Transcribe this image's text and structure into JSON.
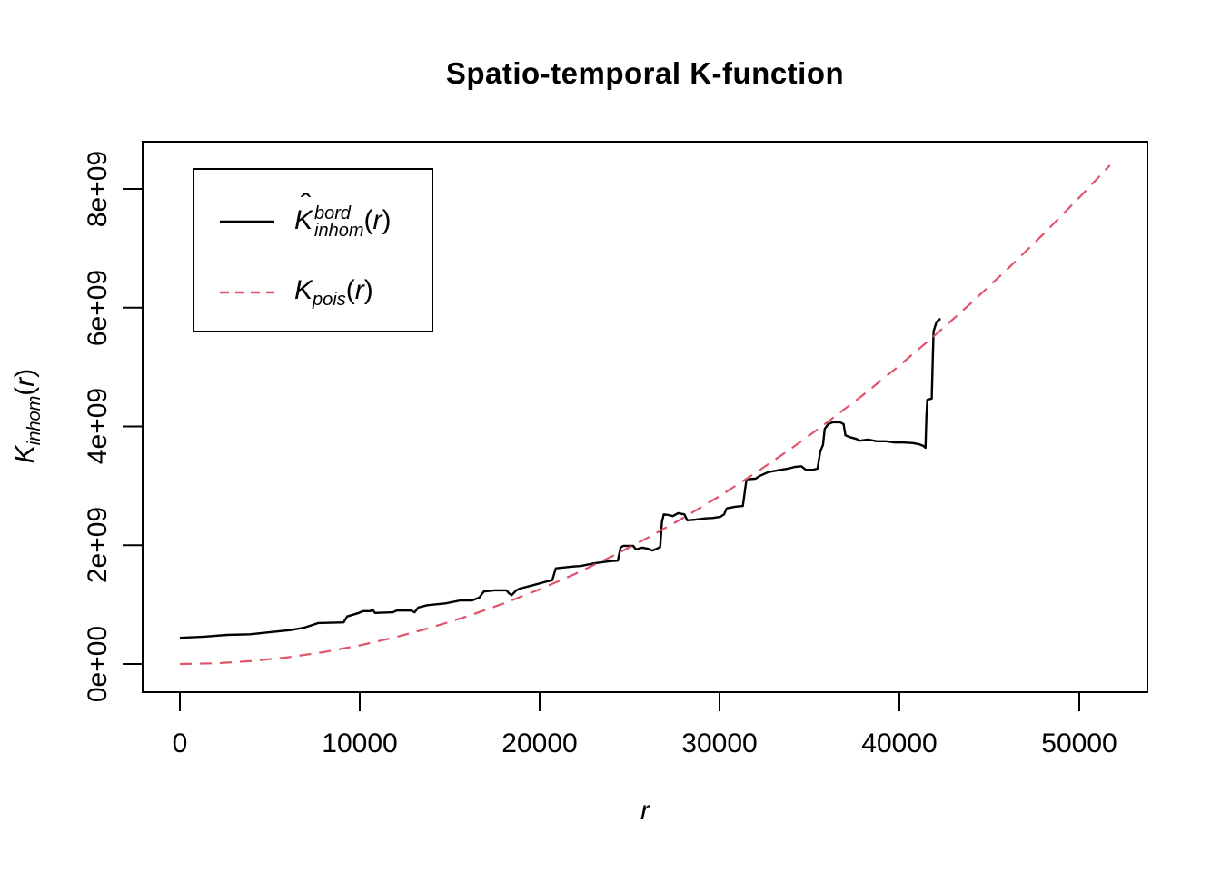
{
  "title": "Spatio-temporal K-function",
  "x_axis": {
    "label": "r",
    "tick_labels": [
      "0",
      "10000",
      "20000",
      "30000",
      "40000",
      "50000"
    ]
  },
  "y_axis": {
    "tick_labels": [
      "0e+00",
      "2e+09",
      "4e+09",
      "6e+09",
      "8e+09"
    ],
    "label": {
      "main": "K",
      "sub": "inhom",
      "open": "(",
      "var": "r",
      "close": ")"
    }
  },
  "legend": {
    "items": [
      {
        "line": "solid",
        "label": {
          "hat": "ˆ",
          "main": "K",
          "sup": "bord",
          "sub": "inhom",
          "open": "(",
          "var": "r",
          "close": ")"
        }
      },
      {
        "line": "dashed",
        "label": {
          "main": "K",
          "sub": "pois",
          "open": "(",
          "var": "r",
          "close": ")"
        }
      }
    ]
  },
  "colors": {
    "black": "#000000",
    "kpois": "#DF536B",
    "background": "#FFFFFF"
  },
  "chart_data": {
    "type": "line",
    "title": "Spatio-temporal K-function",
    "xlabel": "r",
    "ylabel": "K_inhom(r)",
    "xlim": [
      -2070,
      53790
    ],
    "ylim_e9": [
      -0.47,
      8.8
    ],
    "x_ticks": [
      0,
      10000,
      20000,
      30000,
      40000,
      50000
    ],
    "y_ticks_e9": [
      0,
      2,
      4,
      6,
      8
    ],
    "grid": false,
    "legend_position": "top-left",
    "series": [
      {
        "id": "kinhom-curve",
        "name": "K̂_inhom^bord(r)",
        "style": "solid",
        "color": "#000000",
        "units": "K in 1e9",
        "r": [
          0,
          1350,
          2600,
          3900,
          5150,
          6150,
          6900,
          7700,
          9100,
          9300,
          9950,
          10200,
          10600,
          10700,
          10850,
          11850,
          12050,
          12850,
          13050,
          13250,
          13750,
          14750,
          15600,
          16250,
          16650,
          16900,
          17500,
          18150,
          18300,
          18450,
          18700,
          18900,
          19550,
          20400,
          20700,
          20900,
          21800,
          22300,
          23100,
          23850,
          24350,
          24500,
          24650,
          25200,
          25350,
          25700,
          26050,
          26250,
          26500,
          26700,
          26800,
          26900,
          27150,
          27400,
          27700,
          28050,
          28200,
          28650,
          29150,
          29650,
          30050,
          30250,
          30400,
          30900,
          31300,
          31400,
          31500,
          32000,
          32250,
          32700,
          33200,
          33800,
          34200,
          34550,
          34800,
          35200,
          35450,
          35600,
          35750,
          35850,
          36050,
          36300,
          36700,
          36900,
          37000,
          37250,
          37600,
          37800,
          38250,
          38750,
          39250,
          39750,
          40250,
          40750,
          41100,
          41350,
          41450,
          41500,
          41550,
          41800,
          41850,
          41900,
          42050,
          42200,
          42300
        ],
        "K_e9": [
          0.44,
          0.46,
          0.49,
          0.5,
          0.54,
          0.57,
          0.61,
          0.69,
          0.7,
          0.8,
          0.86,
          0.89,
          0.89,
          0.92,
          0.86,
          0.87,
          0.9,
          0.9,
          0.87,
          0.95,
          0.99,
          1.02,
          1.07,
          1.07,
          1.12,
          1.22,
          1.24,
          1.24,
          1.19,
          1.16,
          1.24,
          1.27,
          1.32,
          1.39,
          1.41,
          1.61,
          1.64,
          1.65,
          1.7,
          1.73,
          1.74,
          1.96,
          1.99,
          1.99,
          1.93,
          1.96,
          1.94,
          1.91,
          1.94,
          1.97,
          2.39,
          2.52,
          2.51,
          2.49,
          2.54,
          2.52,
          2.42,
          2.43,
          2.45,
          2.46,
          2.48,
          2.52,
          2.62,
          2.65,
          2.66,
          2.89,
          3.11,
          3.12,
          3.17,
          3.23,
          3.26,
          3.29,
          3.32,
          3.33,
          3.27,
          3.27,
          3.29,
          3.58,
          3.69,
          3.96,
          4.04,
          4.07,
          4.07,
          4.04,
          3.85,
          3.82,
          3.79,
          3.76,
          3.78,
          3.75,
          3.75,
          3.73,
          3.73,
          3.72,
          3.7,
          3.67,
          3.64,
          4.15,
          4.45,
          4.47,
          5.06,
          5.6,
          5.75,
          5.8,
          5.81
        ]
      },
      {
        "id": "kpois-curve",
        "name": "K_pois(r)",
        "style": "dashed",
        "color": "#DF536B",
        "units": "K in 1e9",
        "formula": "pi*r^2",
        "r": [
          0,
          2000,
          4000,
          6000,
          8000,
          10000,
          12000,
          14000,
          16000,
          18000,
          20000,
          22000,
          24000,
          26000,
          28000,
          30000,
          32000,
          34000,
          36000,
          38000,
          40000,
          42000,
          44000,
          46000,
          48000,
          50000,
          51700
        ],
        "K_e9": [
          0,
          0.013,
          0.05,
          0.113,
          0.201,
          0.314,
          0.452,
          0.616,
          0.804,
          1.018,
          1.257,
          1.521,
          1.81,
          2.124,
          2.463,
          2.827,
          3.217,
          3.632,
          4.072,
          4.536,
          5.027,
          5.542,
          6.082,
          6.648,
          7.238,
          7.854,
          8.397
        ]
      }
    ]
  }
}
